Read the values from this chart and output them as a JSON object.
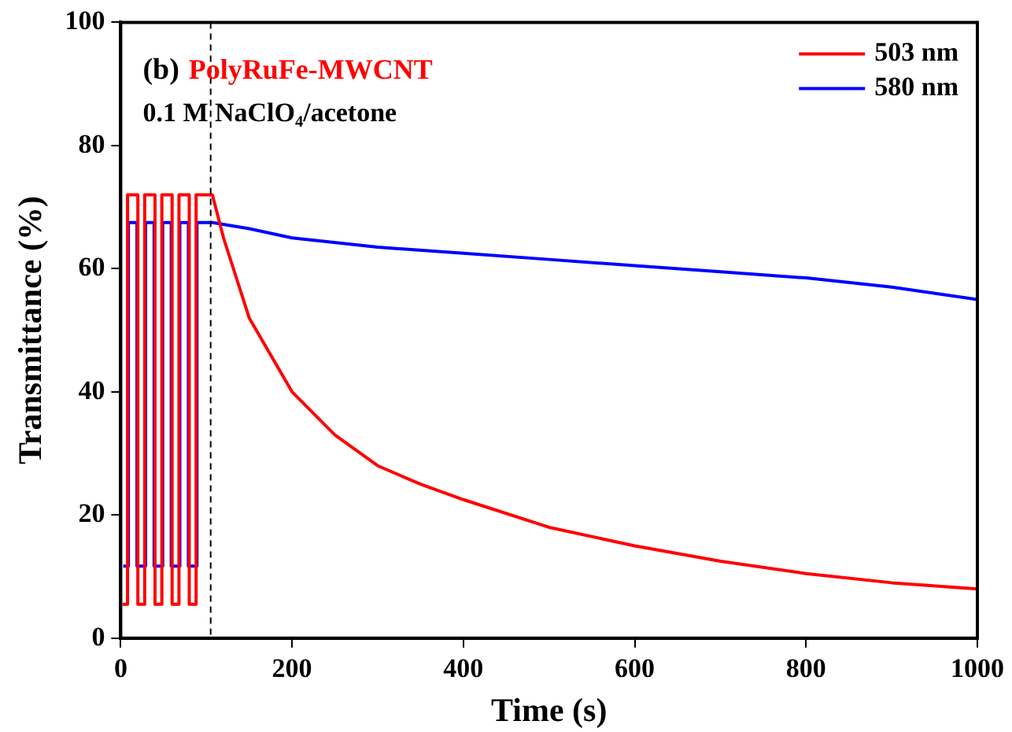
{
  "chart_data": {
    "type": "line",
    "xlabel": "Time (s)",
    "ylabel": "Transmittance (%)",
    "annotations": [
      "(b)",
      "PolyRuFe-MWCNT",
      "0.1 M NaClO₄/acetone"
    ],
    "series": [
      {
        "name": "503 nm",
        "color": "#ff0000",
        "x": [
          2,
          8,
          8,
          20,
          20,
          28,
          28,
          40,
          40,
          48,
          48,
          60,
          60,
          68,
          68,
          80,
          80,
          88,
          88,
          100,
          107,
          120,
          150,
          200,
          250,
          300,
          350,
          400,
          500,
          600,
          700,
          800,
          900,
          1000
        ],
        "values": [
          5.5,
          5.5,
          72,
          72,
          5.5,
          5.5,
          72,
          72,
          5.5,
          5.5,
          72,
          72,
          5.5,
          5.5,
          72,
          72,
          5.5,
          5.5,
          72,
          72,
          72,
          65,
          52,
          40,
          33,
          28,
          25,
          22.5,
          18,
          15,
          12.5,
          10.5,
          9,
          8
        ]
      },
      {
        "name": "580 nm",
        "color": "#0000ff",
        "x": [
          3,
          9,
          9,
          19,
          19,
          29,
          29,
          39,
          39,
          49,
          49,
          59,
          59,
          69,
          69,
          79,
          79,
          89,
          89,
          100,
          107,
          150,
          200,
          300,
          400,
          500,
          600,
          700,
          800,
          900,
          1000
        ],
        "values": [
          11.7,
          11.7,
          67.5,
          67.5,
          11.7,
          11.7,
          67.5,
          67.5,
          11.7,
          11.7,
          67.5,
          67.5,
          11.7,
          11.7,
          67.5,
          67.5,
          11.7,
          11.7,
          67.5,
          67.5,
          67.5,
          66.5,
          65,
          63.5,
          62.5,
          61.5,
          60.5,
          59.5,
          58.5,
          57,
          55
        ]
      }
    ],
    "xlim": [
      0,
      1000
    ],
    "xticks": [
      0,
      200,
      400,
      600,
      800,
      1000
    ],
    "ylim": [
      0,
      100
    ],
    "yticks": [
      0,
      20,
      40,
      60,
      80,
      100
    ],
    "ref_lines": [
      {
        "axis": "x",
        "value": 105,
        "color": "#000000",
        "line_style": "dashed"
      }
    ],
    "legend": "top right",
    "grid": false,
    "marker": "none",
    "line_style": "solid"
  }
}
